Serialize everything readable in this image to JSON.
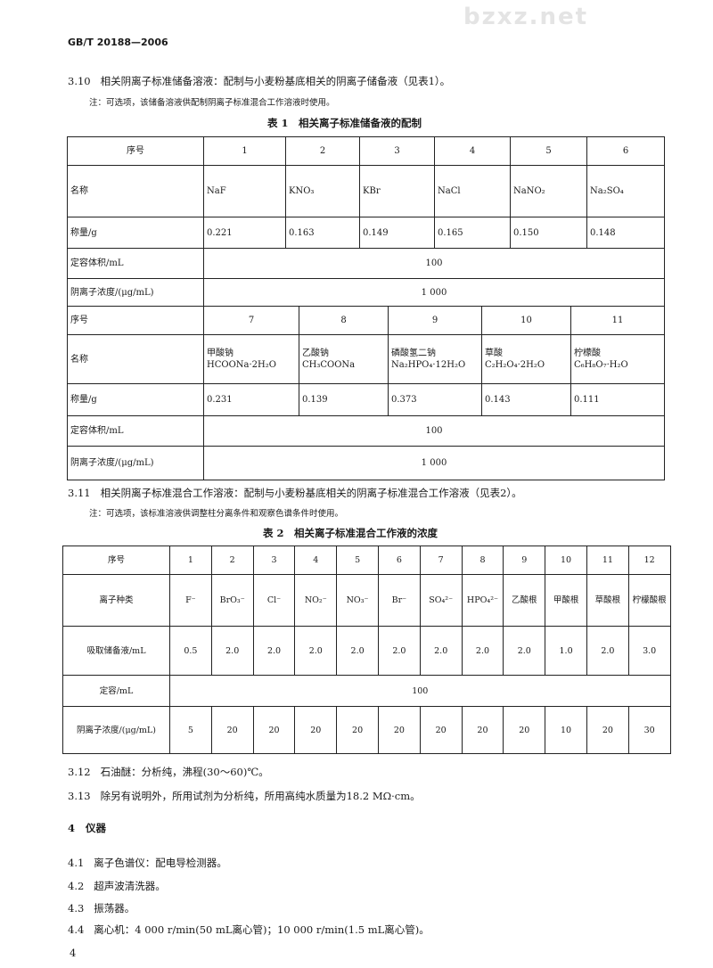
{
  "header": "GB/T 20188—2006",
  "watermark": "bzxz.net",
  "s310": {
    "num": "3.10",
    "text": "相关阴离子标准储备溶液：配制与小麦粉基底相关的阴离子储备液（见表1）。",
    "note": "注：可选项，该储备溶液供配制阴离子标准混合工作溶液时使用。"
  },
  "table1": {
    "caption": "表 1　相关离子标准储备液的配制",
    "labels": {
      "no": "序号",
      "name": "名称",
      "mass": "称量/g",
      "volume": "定容体积/mL",
      "conc": "阴离子浓度/(μg/mL)"
    },
    "part1": {
      "no": [
        "1",
        "2",
        "3",
        "4",
        "5",
        "6"
      ],
      "name": [
        "NaF",
        "KNO₃",
        "KBr",
        "NaCl",
        "NaNO₂",
        "Na₂SO₄"
      ],
      "mass": [
        "0.221",
        "0.163",
        "0.149",
        "0.165",
        "0.150",
        "0.148"
      ],
      "volume": "100",
      "conc": "1 000"
    },
    "part2": {
      "no": [
        "7",
        "8",
        "9",
        "10",
        "11"
      ],
      "name": [
        "甲酸钠",
        "乙酸钠",
        "磷酸氢二钠",
        "草酸",
        "柠檬酸"
      ],
      "formula": [
        "HCOONa·2H₂O",
        "CH₃COONa",
        "Na₂HPO₄·12H₂O",
        "C₂H₂O₄·2H₂O",
        "C₆H₈O₇·H₂O"
      ],
      "mass": [
        "0.231",
        "0.139",
        "0.373",
        "0.143",
        "0.111"
      ],
      "volume": "100",
      "conc": "1 000"
    }
  },
  "s311": {
    "num": "3.11",
    "text": "相关阴离子标准混合工作溶液：配制与小麦粉基底相关的阴离子标准混合工作溶液（见表2）。",
    "note": "注：可选项，该标准溶液供调整柱分离条件和观察色谱条件时使用。"
  },
  "table2": {
    "caption": "表 2　相关离子标准混合工作液的浓度",
    "labels": {
      "no": "序号",
      "ion": "离子种类",
      "take": "吸取储备液/mL",
      "volume": "定容/mL",
      "conc": "阴离子浓度/(μg/mL)"
    },
    "no": [
      "1",
      "2",
      "3",
      "4",
      "5",
      "6",
      "7",
      "8",
      "9",
      "10",
      "11",
      "12"
    ],
    "ion": [
      "F⁻",
      "BrO₃⁻",
      "Cl⁻",
      "NO₂⁻",
      "NO₃⁻",
      "Br⁻",
      "SO₄²⁻",
      "HPO₄²⁻",
      "乙酸根",
      "甲酸根",
      "草酸根",
      "柠檬酸根"
    ],
    "take": [
      "0.5",
      "2.0",
      "2.0",
      "2.0",
      "2.0",
      "2.0",
      "2.0",
      "2.0",
      "2.0",
      "1.0",
      "2.0",
      "3.0"
    ],
    "volume": "100",
    "conc": [
      "5",
      "20",
      "20",
      "20",
      "20",
      "20",
      "20",
      "20",
      "20",
      "10",
      "20",
      "30"
    ]
  },
  "s312": {
    "num": "3.12",
    "text": "石油醚：分析纯，沸程(30～60)℃。"
  },
  "s313": {
    "num": "3.13",
    "text": "除另有说明外，所用试剂为分析纯，所用高纯水质量为18.2 MΩ·cm。"
  },
  "s4": {
    "num": "4",
    "text": "仪器"
  },
  "s41": {
    "num": "4.1",
    "text": "离子色谱仪：配电导检测器。"
  },
  "s42": {
    "num": "4.2",
    "text": "超声波清洗器。"
  },
  "s43": {
    "num": "4.3",
    "text": "振荡器。"
  },
  "s44": {
    "num": "4.4",
    "text": "离心机：4 000 r/min(50 mL离心管)；10 000 r/min(1.5 mL离心管)。"
  },
  "page_number": "4"
}
